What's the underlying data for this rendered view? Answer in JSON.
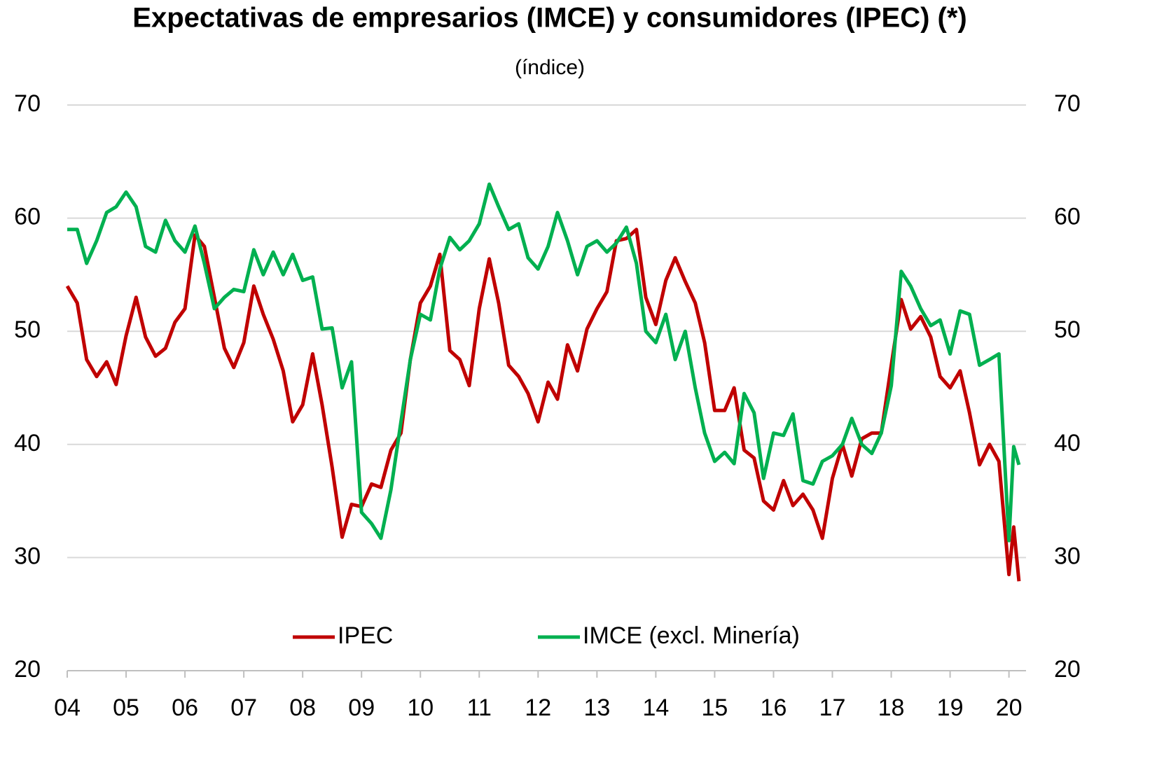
{
  "chart_data": {
    "type": "line",
    "title": "Expectativas de empresarios (IMCE) y consumidores (IPEC) (*)",
    "subtitle": "(índice)",
    "x": [
      2004,
      2004.17,
      2004.33,
      2004.5,
      2004.67,
      2004.83,
      2005,
      2005.17,
      2005.33,
      2005.5,
      2005.67,
      2005.83,
      2006,
      2006.17,
      2006.33,
      2006.5,
      2006.67,
      2006.83,
      2007,
      2007.17,
      2007.33,
      2007.5,
      2007.67,
      2007.83,
      2008,
      2008.17,
      2008.33,
      2008.5,
      2008.67,
      2008.83,
      2009,
      2009.17,
      2009.33,
      2009.5,
      2009.67,
      2009.83,
      2010,
      2010.17,
      2010.33,
      2010.5,
      2010.67,
      2010.83,
      2011,
      2011.17,
      2011.33,
      2011.5,
      2011.67,
      2011.83,
      2012,
      2012.17,
      2012.33,
      2012.5,
      2012.67,
      2012.83,
      2013,
      2013.17,
      2013.33,
      2013.5,
      2013.67,
      2013.83,
      2014,
      2014.17,
      2014.33,
      2014.5,
      2014.67,
      2014.83,
      2015,
      2015.17,
      2015.33,
      2015.5,
      2015.67,
      2015.83,
      2016,
      2016.17,
      2016.33,
      2016.5,
      2016.67,
      2016.83,
      2017,
      2017.17,
      2017.33,
      2017.5,
      2017.67,
      2017.83,
      2018,
      2018.17,
      2018.33,
      2018.5,
      2018.67,
      2018.83,
      2019,
      2019.17,
      2019.33,
      2019.5,
      2019.67,
      2019.83,
      2020,
      2020.08,
      2020.17
    ],
    "series": [
      {
        "name": "IPEC",
        "color": "#c00000",
        "values": [
          54,
          52.5,
          47.5,
          46,
          47.3,
          45.3,
          49.6,
          53,
          49.5,
          47.8,
          48.5,
          50.8,
          52,
          58.5,
          57.5,
          53,
          48.5,
          46.8,
          49,
          54,
          51.5,
          49.3,
          46.5,
          42,
          43.5,
          48,
          43.5,
          38,
          31.8,
          34.7,
          34.5,
          36.5,
          36.2,
          39.5,
          41,
          47.5,
          52.5,
          54,
          56.8,
          48.3,
          47.5,
          45.2,
          52,
          56.4,
          52.5,
          47,
          46,
          44.5,
          42,
          45.5,
          44,
          48.8,
          46.5,
          50.2,
          52,
          53.5,
          58,
          58.2,
          59,
          53,
          50.6,
          54.5,
          56.5,
          54.4,
          52.5,
          49,
          43,
          43,
          45,
          39.5,
          38.8,
          35,
          34.2,
          36.8,
          34.6,
          35.6,
          34.2,
          31.7,
          37,
          40,
          37.2,
          40.5,
          41,
          41,
          47,
          52.8,
          50.2,
          51.3,
          49.5,
          46,
          45,
          46.5,
          42.8,
          38.2,
          40,
          38.5,
          28.5,
          32.7,
          27.9
        ]
      },
      {
        "name": "IMCE (excl. Minería)",
        "color": "#00b050",
        "values": [
          59,
          59,
          56,
          58,
          60.5,
          61,
          62.3,
          61,
          57.5,
          57,
          59.8,
          58,
          57,
          59.3,
          56,
          52,
          53,
          53.7,
          53.5,
          57.2,
          55,
          57,
          55,
          56.8,
          54.5,
          54.8,
          50.2,
          50.3,
          45,
          47.3,
          34,
          33,
          31.7,
          36,
          42,
          47.5,
          51.5,
          51,
          55.5,
          58.3,
          57.2,
          58,
          59.5,
          63,
          61,
          59,
          59.5,
          56.5,
          55.5,
          57.5,
          60.5,
          58,
          55,
          57.5,
          58,
          57,
          57.8,
          59.2,
          56,
          50,
          49,
          51.5,
          47.5,
          50,
          45,
          41,
          38.5,
          39.3,
          38.3,
          44.5,
          42.8,
          37,
          41,
          40.8,
          42.7,
          36.8,
          36.5,
          38.5,
          39,
          40,
          42.3,
          40,
          39.2,
          41,
          45.2,
          55.3,
          54,
          52,
          50.5,
          51,
          48,
          51.8,
          51.5,
          47,
          47.5,
          48,
          31.5,
          39.8,
          38.2
        ]
      }
    ],
    "xlim": [
      2004,
      2020.29
    ],
    "xticks": [
      {
        "value": 2004,
        "label": "04"
      },
      {
        "value": 2005,
        "label": "05"
      },
      {
        "value": 2006,
        "label": "06"
      },
      {
        "value": 2007,
        "label": "07"
      },
      {
        "value": 2008,
        "label": "08"
      },
      {
        "value": 2009,
        "label": "09"
      },
      {
        "value": 2010,
        "label": "10"
      },
      {
        "value": 2011,
        "label": "11"
      },
      {
        "value": 2012,
        "label": "12"
      },
      {
        "value": 2013,
        "label": "13"
      },
      {
        "value": 2014,
        "label": "14"
      },
      {
        "value": 2015,
        "label": "15"
      },
      {
        "value": 2016,
        "label": "16"
      },
      {
        "value": 2017,
        "label": "17"
      },
      {
        "value": 2018,
        "label": "18"
      },
      {
        "value": 2019,
        "label": "19"
      },
      {
        "value": 2020,
        "label": "20"
      }
    ],
    "ylim": [
      20,
      70
    ],
    "yticks": [
      20,
      30,
      40,
      50,
      60,
      70
    ],
    "y2lim": [
      20,
      70
    ],
    "y2ticks": [
      20,
      30,
      40,
      50,
      60,
      70
    ],
    "grid": true
  }
}
